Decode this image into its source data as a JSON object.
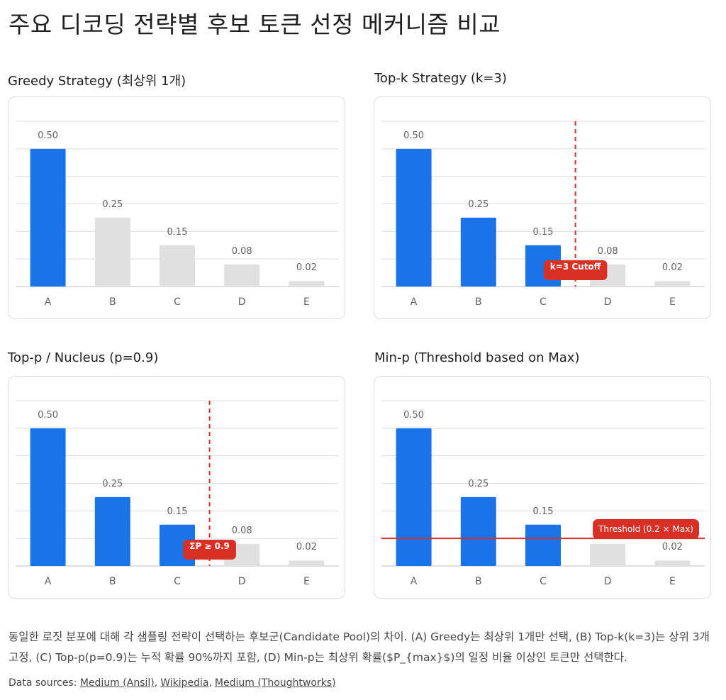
{
  "title": "주요 디코딩 전략별 후보 토큰 선정 메커니즘 비교",
  "colors": {
    "selected": "#1a73e8",
    "unselected": "#e0e0e0",
    "marker": "#d93025",
    "grid": "#dadce0"
  },
  "chart_data": [
    {
      "type": "bar",
      "title": "Greedy Strategy (최상위 1개)",
      "categories": [
        "A",
        "B",
        "C",
        "D",
        "E"
      ],
      "values": [
        0.5,
        0.25,
        0.15,
        0.08,
        0.02
      ],
      "value_labels": [
        "0.50",
        "0.25",
        "0.15",
        "0.08",
        "0.02"
      ],
      "selected": [
        true,
        false,
        false,
        false,
        false
      ],
      "ylim": [
        0,
        0.6
      ],
      "grid": true,
      "marker": null
    },
    {
      "type": "bar",
      "title": "Top-k Strategy (k=3)",
      "categories": [
        "A",
        "B",
        "C",
        "D",
        "E"
      ],
      "values": [
        0.5,
        0.25,
        0.15,
        0.08,
        0.02
      ],
      "value_labels": [
        "0.50",
        "0.25",
        "0.15",
        "0.08",
        "0.02"
      ],
      "selected": [
        true,
        true,
        true,
        false,
        false
      ],
      "ylim": [
        0,
        0.6
      ],
      "grid": true,
      "marker": {
        "kind": "vertical",
        "after_index": 2,
        "label": "k=3 Cutoff"
      }
    },
    {
      "type": "bar",
      "title": "Top-p / Nucleus (p=0.9)",
      "categories": [
        "A",
        "B",
        "C",
        "D",
        "E"
      ],
      "values": [
        0.5,
        0.25,
        0.15,
        0.08,
        0.02
      ],
      "value_labels": [
        "0.50",
        "0.25",
        "0.15",
        "0.08",
        "0.02"
      ],
      "selected": [
        true,
        true,
        true,
        false,
        false
      ],
      "ylim": [
        0,
        0.6
      ],
      "grid": true,
      "marker": {
        "kind": "vertical",
        "after_index": 2,
        "label": "ΣP ≥ 0.9"
      }
    },
    {
      "type": "bar",
      "title": "Min-p (Threshold based on Max)",
      "categories": [
        "A",
        "B",
        "C",
        "D",
        "E"
      ],
      "values": [
        0.5,
        0.25,
        0.15,
        0.08,
        0.02
      ],
      "value_labels": [
        "0.50",
        "0.25",
        "0.15",
        "0.08",
        "0.02"
      ],
      "selected": [
        true,
        true,
        true,
        false,
        false
      ],
      "ylim": [
        0,
        0.6
      ],
      "grid": true,
      "marker": {
        "kind": "horizontal",
        "value": 0.1,
        "label": "Threshold (0.2 × Max)"
      }
    }
  ],
  "caption": "동일한 로짓 분포에 대해 각 샘플링 전략이 선택하는 후보군(Candidate Pool)의 차이. (A) Greedy는 최상위 1개만 선택, (B) Top-k(k=3)는 상위 3개 고정, (C) Top-p(p=0.9)는 누적 확률 90%까지 포함, (D) Min-p는 최상위 확률($P_{max}$)의 일정 비율 이상인 토큰만 선택한다.",
  "sources": {
    "label": "Data sources:",
    "links": [
      "Medium (Ansil)",
      "Wikipedia",
      "Medium (Thoughtworks)"
    ]
  }
}
